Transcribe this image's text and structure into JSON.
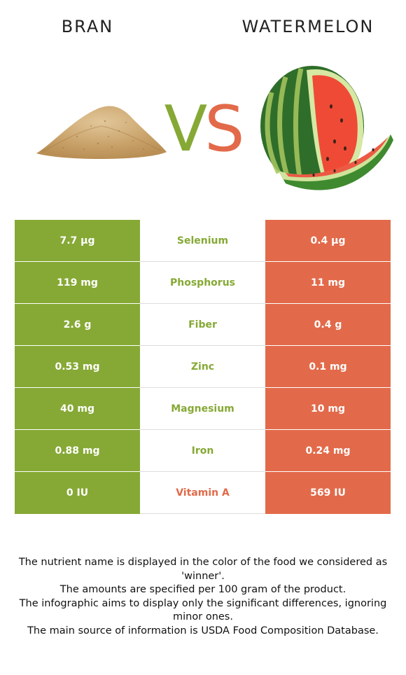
{
  "header": {
    "left_food": "BRAN",
    "right_food": "WATERMELON",
    "vs_v": "V",
    "vs_s": "S"
  },
  "colors": {
    "left": "#86a935",
    "right": "#e26a4a"
  },
  "rows": [
    {
      "left": "7.7 µg",
      "nutrient": "Selenium",
      "right": "0.4 µg",
      "winner": "left"
    },
    {
      "left": "119 mg",
      "nutrient": "Phosphorus",
      "right": "11 mg",
      "winner": "left"
    },
    {
      "left": "2.6 g",
      "nutrient": "Fiber",
      "right": "0.4 g",
      "winner": "left"
    },
    {
      "left": "0.53 mg",
      "nutrient": "Zinc",
      "right": "0.1 mg",
      "winner": "left"
    },
    {
      "left": "40 mg",
      "nutrient": "Magnesium",
      "right": "10 mg",
      "winner": "left"
    },
    {
      "left": "0.88 mg",
      "nutrient": "Iron",
      "right": "0.24 mg",
      "winner": "left"
    },
    {
      "left": "0 IU",
      "nutrient": "Vitamin A",
      "right": "569 IU",
      "winner": "right"
    }
  ],
  "footnotes": [
    "The nutrient name is displayed in the color of the food we considered as 'winner'.",
    "The amounts are specified per 100 gram of the product.",
    "The infographic aims to display only the significant differences, ignoring minor ones.",
    "The main source of information is USDA Food Composition Database."
  ]
}
